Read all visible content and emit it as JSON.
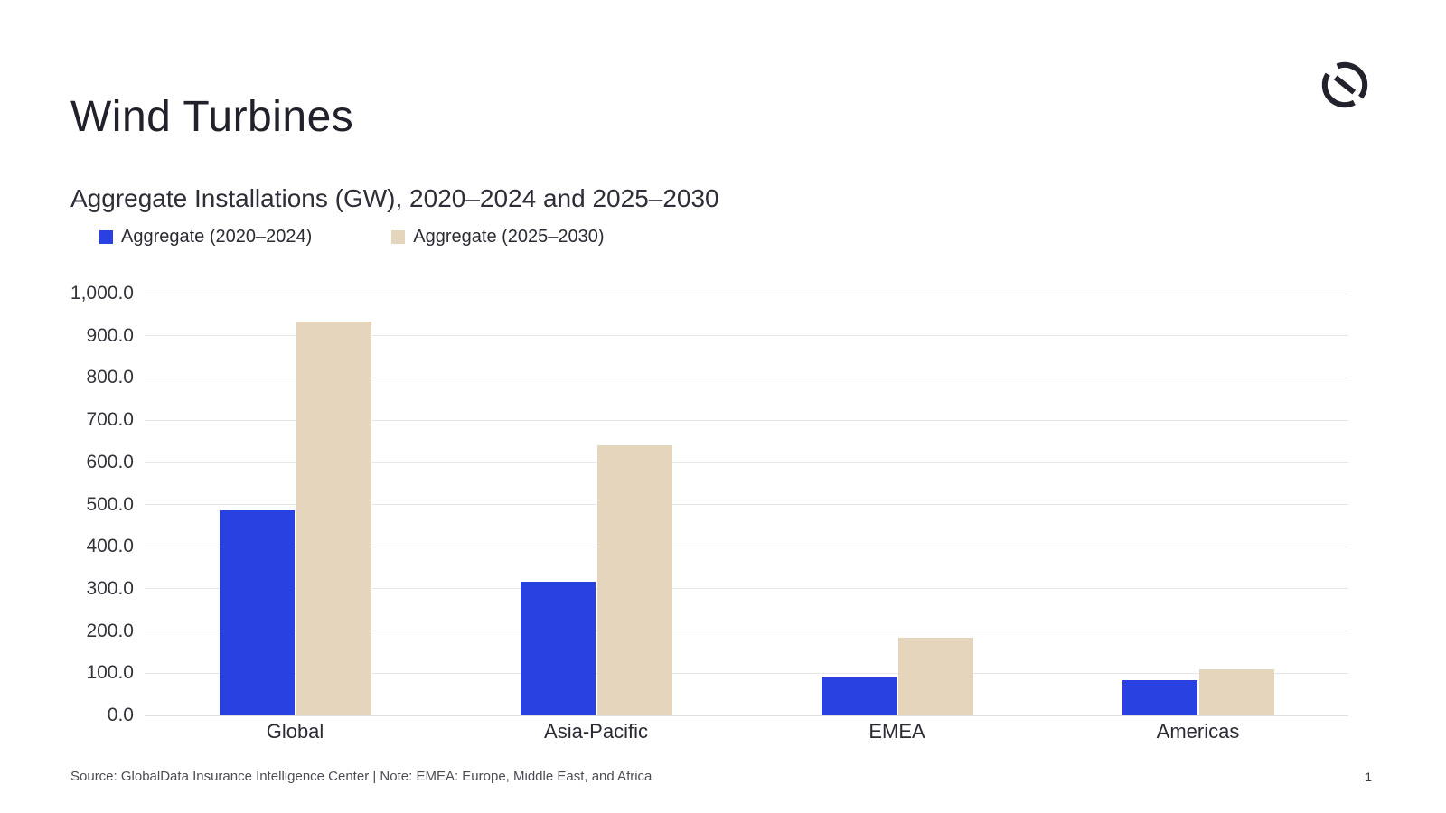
{
  "header": {
    "title": "Wind Turbines",
    "subtitle": "Aggregate Installations (GW), 2020–2024 and 2025–2030",
    "logo_color": "#22222c"
  },
  "chart_data": {
    "type": "bar",
    "title": "Aggregate Installations (GW), 2020–2024 and 2025–2030",
    "categories": [
      "Global",
      "Asia-Pacific",
      "EMEA",
      "Americas"
    ],
    "series": [
      {
        "name": "Aggregate (2020–2024)",
        "color": "#2841e0",
        "values": [
          487,
          317,
          90,
          83
        ]
      },
      {
        "name": "Aggregate (2025–2030)",
        "color": "#e6d5bd",
        "values": [
          934,
          640,
          184,
          109
        ]
      }
    ],
    "xlabel": "",
    "ylabel": "",
    "ylim": [
      0,
      1000
    ],
    "y_tick_step": 100,
    "y_tick_labels": [
      "0.0",
      "100.0",
      "200.0",
      "300.0",
      "400.0",
      "500.0",
      "600.0",
      "700.0",
      "800.0",
      "900.0",
      "1,000.0"
    ],
    "grid": "horizontal",
    "legend_position": "top-left"
  },
  "footer": {
    "source": "Source: GlobalData Insurance Intelligence Center | Note: EMEA: Europe, Middle East, and Africa",
    "page_number": "1"
  }
}
